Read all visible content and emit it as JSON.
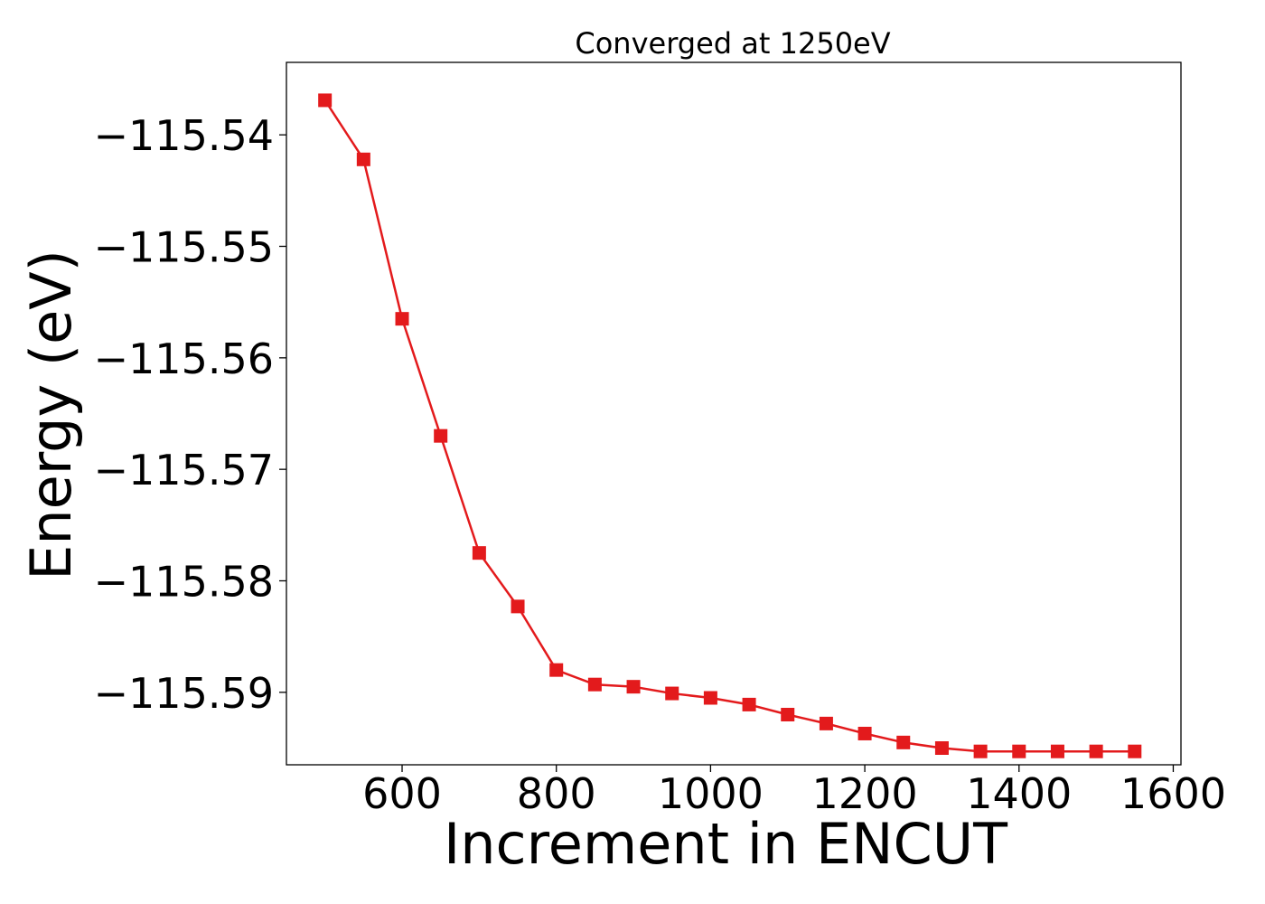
{
  "chart_data": {
    "type": "line",
    "title": "Converged at 1250eV",
    "xlabel": "Increment in ENCUT",
    "ylabel": "Energy (eV)",
    "xlim": [
      450,
      1610
    ],
    "ylim": [
      -115.5965,
      -115.5335
    ],
    "x_ticks": [
      600,
      800,
      1000,
      1200,
      1400,
      1600
    ],
    "x_tick_labels": [
      "600",
      "800",
      "1000",
      "1200",
      "1400",
      "1600"
    ],
    "y_ticks": [
      -115.54,
      -115.55,
      -115.56,
      -115.57,
      -115.58,
      -115.59
    ],
    "y_tick_labels": [
      "−115.54",
      "−115.55",
      "−115.56",
      "−115.57",
      "−115.58",
      "−115.59"
    ],
    "grid": false,
    "legend": "none",
    "series": [
      {
        "color": "#e31a1c",
        "marker": "square",
        "x": [
          500,
          550,
          600,
          650,
          700,
          750,
          800,
          850,
          900,
          950,
          1000,
          1050,
          1100,
          1150,
          1200,
          1250,
          1300,
          1350,
          1400,
          1450,
          1500,
          1550
        ],
        "y": [
          -115.5369,
          -115.5422,
          -115.5565,
          -115.567,
          -115.5775,
          -115.5823,
          -115.588,
          -115.5893,
          -115.5895,
          -115.5901,
          -115.5905,
          -115.5911,
          -115.592,
          -115.5928,
          -115.5937,
          -115.5945,
          -115.595,
          -115.5953,
          -115.5953,
          -115.5953,
          -115.5953,
          -115.5953
        ]
      }
    ]
  }
}
